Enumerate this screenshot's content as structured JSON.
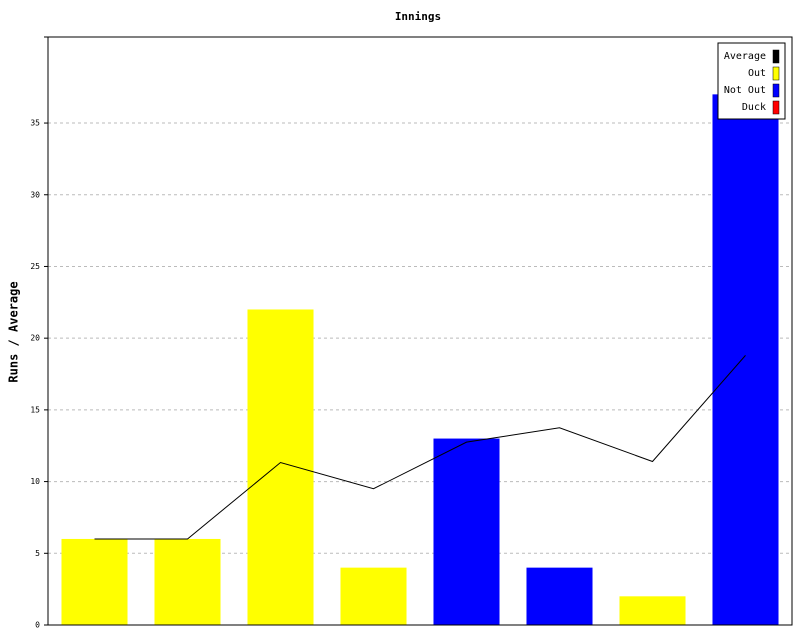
{
  "chart_data": {
    "type": "bar",
    "title": "Innings",
    "y_label": "Runs / Average",
    "categories": [
      null,
      null,
      null,
      null,
      null,
      null,
      null,
      null
    ],
    "series": [
      {
        "name": "Average",
        "color": "#000000",
        "type": "line",
        "values": [
          6,
          6,
          11.33,
          9.5,
          12.75,
          13.75,
          11.4,
          18.8
        ]
      },
      {
        "name": "Out",
        "color": "#ffff00",
        "type": "bar",
        "values": [
          6,
          6,
          22,
          4,
          null,
          null,
          2,
          null
        ]
      },
      {
        "name": "Not Out",
        "color": "#0000ff",
        "type": "bar",
        "values": [
          null,
          null,
          null,
          null,
          13,
          4,
          null,
          37
        ]
      },
      {
        "name": "Duck",
        "color": "#ff0000",
        "type": "bar",
        "values": [
          null,
          null,
          null,
          null,
          null,
          null,
          null,
          null
        ]
      }
    ],
    "ylim": [
      0,
      41
    ],
    "yticks": [
      0,
      5,
      10,
      15,
      20,
      25,
      30,
      35
    ],
    "grid": true,
    "legend": "top-right"
  }
}
